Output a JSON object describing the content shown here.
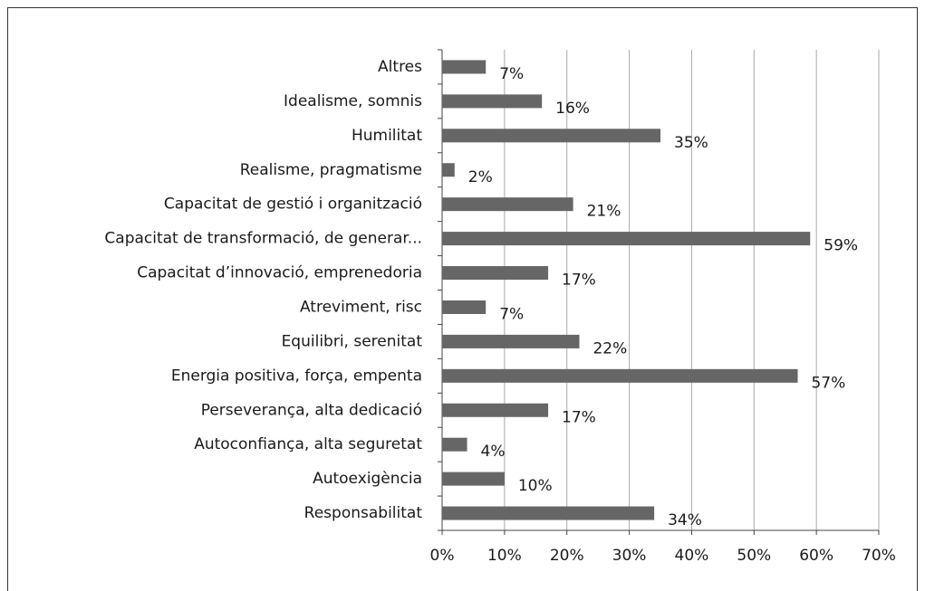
{
  "chart_data": {
    "type": "bar",
    "orientation": "horizontal",
    "categories": [
      "Altres",
      "Idealisme, somnis",
      "Humilitat",
      "Realisme, pragmatisme",
      "Capacitat de gestió i organització",
      "Capacitat de transformació, de generar...",
      "Capacitat d’innovació, emprenedoria",
      "Atreviment, risc",
      "Equilibri, serenitat",
      "Energia positiva, força, empenta",
      "Perseverança, alta dedicació",
      "Autoconfiança, alta seguretat",
      "Autoexigència",
      "Responsabilitat"
    ],
    "values": [
      7,
      16,
      35,
      2,
      21,
      59,
      17,
      7,
      22,
      57,
      17,
      4,
      10,
      34
    ],
    "value_labels": [
      "7%",
      "16%",
      "35%",
      "2%",
      "21%",
      "59%",
      "17%",
      "7%",
      "22%",
      "57%",
      "17%",
      "4%",
      "10%",
      "34%"
    ],
    "color": "#666666",
    "xlim": [
      0,
      70
    ],
    "xticks": [
      {
        "value": 0,
        "label": "0%"
      },
      {
        "value": 10,
        "label": "10%"
      },
      {
        "value": 20,
        "label": "20%"
      },
      {
        "value": 30,
        "label": "30%"
      },
      {
        "value": 40,
        "label": "40%"
      },
      {
        "value": 50,
        "label": "50%"
      },
      {
        "value": 60,
        "label": "60%"
      },
      {
        "value": 70,
        "label": "70%"
      }
    ],
    "grid": true
  }
}
